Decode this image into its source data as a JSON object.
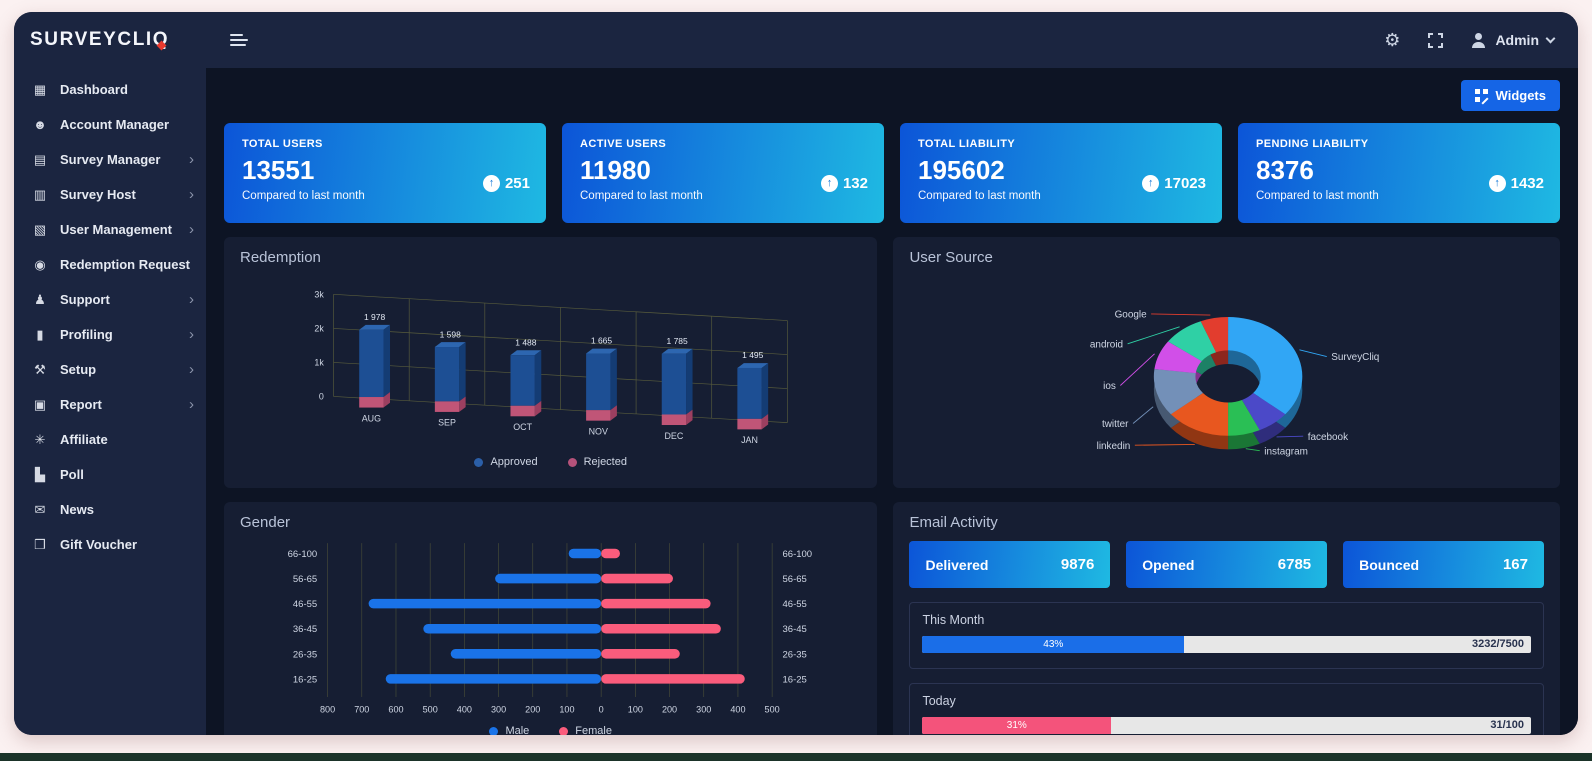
{
  "brand": {
    "logo": "SURVEYCLIQ"
  },
  "topbar": {
    "user_label": "Admin"
  },
  "sidebar": {
    "items": [
      {
        "label": "Dashboard",
        "icon": "dashboard-icon",
        "glyph": "▦",
        "has_submenu": false
      },
      {
        "label": "Account Manager",
        "icon": "account-manager-icon",
        "glyph": "☻",
        "has_submenu": false
      },
      {
        "label": "Survey Manager",
        "icon": "survey-manager-icon",
        "glyph": "▤",
        "has_submenu": true
      },
      {
        "label": "Survey Host",
        "icon": "survey-host-icon",
        "glyph": "▥",
        "has_submenu": true
      },
      {
        "label": "User Management",
        "icon": "user-management-icon",
        "glyph": "▧",
        "has_submenu": true
      },
      {
        "label": "Redemption Request",
        "icon": "redemption-request-icon",
        "glyph": "◉",
        "has_submenu": false
      },
      {
        "label": "Support",
        "icon": "support-icon",
        "glyph": "♟",
        "has_submenu": true
      },
      {
        "label": "Profiling",
        "icon": "profiling-icon",
        "glyph": "▮",
        "has_submenu": true
      },
      {
        "label": "Setup",
        "icon": "setup-icon",
        "glyph": "⚒",
        "has_submenu": true
      },
      {
        "label": "Report",
        "icon": "report-icon",
        "glyph": "▣",
        "has_submenu": true
      },
      {
        "label": "Affiliate",
        "icon": "affiliate-icon",
        "glyph": "✳",
        "has_submenu": false
      },
      {
        "label": "Poll",
        "icon": "poll-icon",
        "glyph": "▙",
        "has_submenu": false
      },
      {
        "label": "News",
        "icon": "news-icon",
        "glyph": "✉",
        "has_submenu": false
      },
      {
        "label": "Gift Voucher",
        "icon": "gift-voucher-icon",
        "glyph": "❒",
        "has_submenu": false
      }
    ]
  },
  "widgets_button": {
    "label": "Widgets"
  },
  "stat_cards": [
    {
      "title": "TOTAL USERS",
      "value": "13551",
      "delta": "251",
      "subtitle": "Compared to last month"
    },
    {
      "title": "ACTIVE USERS",
      "value": "11980",
      "delta": "132",
      "subtitle": "Compared to last month"
    },
    {
      "title": "TOTAL LIABILITY",
      "value": "195602",
      "delta": "17023",
      "subtitle": "Compared to last month"
    },
    {
      "title": "PENDING LIABILITY",
      "value": "8376",
      "delta": "1432",
      "subtitle": "Compared to last month"
    }
  ],
  "chart_data": [
    {
      "id": "redemption",
      "type": "bar",
      "style": "3d-column",
      "title": "Redemption",
      "categories": [
        "AUG",
        "SEP",
        "OCT",
        "NOV",
        "DEC",
        "JAN"
      ],
      "series": [
        {
          "name": "Approved",
          "color": "#2b5fa8",
          "values": [
            1978,
            1598,
            1488,
            1665,
            1785,
            1495
          ]
        },
        {
          "name": "Rejected",
          "color": "#b5527a",
          "values": [
            180,
            210,
            190,
            200,
            205,
            185
          ]
        }
      ],
      "data_labels": [
        "1 978",
        "1 598",
        "1 488",
        "1 665",
        "1 785",
        "1 495"
      ],
      "ylim": [
        0,
        3000
      ],
      "yticks": [
        "0",
        "1k",
        "2k",
        "3k"
      ],
      "grid": true,
      "legend_position": "bottom"
    },
    {
      "id": "user_source",
      "type": "pie",
      "style": "3d-donut",
      "title": "User Source",
      "slices": [
        {
          "label": "SurveyCliq",
          "value": 36,
          "color": "#31a6f5"
        },
        {
          "label": "facebook",
          "value": 7,
          "color": "#4b49c8"
        },
        {
          "label": "instagram",
          "value": 7,
          "color": "#2abf55"
        },
        {
          "label": "linkedin",
          "value": 14,
          "color": "#e8571f"
        },
        {
          "label": "twitter",
          "value": 13,
          "color": "#7390b8"
        },
        {
          "label": "ios",
          "value": 8,
          "color": "#d14fe8"
        },
        {
          "label": "android",
          "value": 9,
          "color": "#2fd0a5"
        },
        {
          "label": "Google",
          "value": 6,
          "color": "#e23d2e"
        }
      ]
    },
    {
      "id": "gender",
      "type": "bar",
      "style": "bidirectional-horizontal",
      "title": "Gender",
      "categories": [
        "66-100",
        "56-65",
        "46-55",
        "36-45",
        "26-35",
        "16-25"
      ],
      "series": [
        {
          "name": "Male",
          "color": "#1a73e8",
          "values": [
            95,
            310,
            680,
            520,
            440,
            630
          ]
        },
        {
          "name": "Female",
          "color": "#fa5c7c",
          "values": [
            55,
            210,
            320,
            350,
            230,
            420
          ]
        }
      ],
      "x_ticks": [
        800,
        700,
        600,
        500,
        400,
        300,
        200,
        100,
        0,
        100,
        200,
        300,
        400,
        500
      ],
      "xlim_left": 800,
      "xlim_right": 500,
      "grid": true,
      "legend_position": "bottom"
    }
  ],
  "email_activity": {
    "title": "Email Activity",
    "cards": [
      {
        "label": "Delivered",
        "value": "9876"
      },
      {
        "label": "Opened",
        "value": "6785"
      },
      {
        "label": "Bounced",
        "value": "167"
      }
    ],
    "progress": [
      {
        "label": "This Month",
        "percent": 43,
        "percent_label": "43%",
        "ratio": "3232/7500",
        "color": "#1a6ee8"
      },
      {
        "label": "Today",
        "percent": 31,
        "percent_label": "31%",
        "ratio": "31/100",
        "color": "#f4537b"
      }
    ]
  }
}
